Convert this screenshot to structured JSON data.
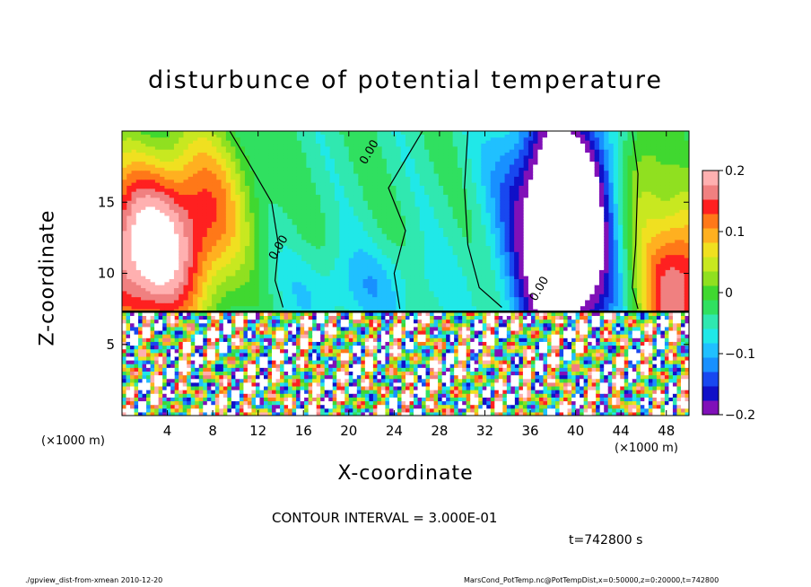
{
  "title": "disturbunce of potential temperature",
  "x_axis": {
    "label": "X-coordinate",
    "unit_left": "(×1000 m)",
    "unit_right": "(×1000 m)"
  },
  "y_axis": {
    "label": "Z-coordinate"
  },
  "contour_interval": "CONTOUR INTERVAL = 3.000E-01",
  "time_label": "t=742800 s",
  "footer": {
    "left": "./gpview_dist-from-xmean   2010-12-20",
    "right": "MarsCond_PotTemp.nc@PotTempDist,x=0:50000,z=0:20000,t=742800"
  },
  "colors": {
    "warm": "#ff2020",
    "cool": "#20c0ff",
    "positive_peak": "#ffb0b0",
    "negative_peak": "#8010c0"
  },
  "chart_data": {
    "type": "heatmap",
    "title": "disturbunce of potential temperature",
    "xlabel": "X-coordinate",
    "ylabel": "Z-coordinate",
    "xlim": [
      0,
      50
    ],
    "ylim": [
      0,
      20
    ],
    "x_ticks": [
      "4",
      "8",
      "12",
      "16",
      "20",
      "24",
      "28",
      "32",
      "36",
      "40",
      "44",
      "48"
    ],
    "x_tick_values": [
      4,
      8,
      12,
      16,
      20,
      24,
      28,
      32,
      36,
      40,
      44,
      48
    ],
    "y_ticks": [
      "5",
      "10",
      "15"
    ],
    "y_tick_values": [
      5,
      10,
      15
    ],
    "colorbar": {
      "range": [
        -0.2,
        0.2
      ],
      "tick_labels": [
        "0.2",
        "0.1",
        "0",
        "−0.1",
        "−0.2"
      ],
      "tick_values": [
        0.2,
        0.1,
        0,
        -0.1,
        -0.2
      ],
      "levels": [
        "#8010b8",
        "#1010c8",
        "#1848f0",
        "#1890ff",
        "#20c0ff",
        "#20e8e8",
        "#30e8b0",
        "#30e060",
        "#40d830",
        "#90e020",
        "#c8e820",
        "#f0e020",
        "#ffb020",
        "#ff7818",
        "#ff2020",
        "#f08080",
        "#ffb0b0"
      ]
    },
    "contour_labels": [
      "0.00",
      "0.00",
      "0.00"
    ],
    "contour_label_positions": [
      [
        21.5,
        17.6
      ],
      [
        13.5,
        10.9
      ],
      [
        36.5,
        8.0
      ]
    ],
    "layer_top_z": 7.3,
    "features": [
      {
        "name": "warm anomaly left",
        "x_range": [
          0,
          11
        ],
        "z_range": [
          7.3,
          20
        ],
        "peak": 0.2
      },
      {
        "name": "near-zero region",
        "x_range": [
          12,
          30
        ],
        "z_range": [
          7.3,
          20
        ],
        "peak": -0.06
      },
      {
        "name": "cold anomaly right",
        "x_range": [
          33,
          44
        ],
        "z_range": [
          7.3,
          20
        ],
        "peak": -0.2
      },
      {
        "name": "warm anomaly far right",
        "x_range": [
          44,
          50
        ],
        "z_range": [
          7.3,
          20
        ],
        "peak": 0.15
      }
    ]
  }
}
